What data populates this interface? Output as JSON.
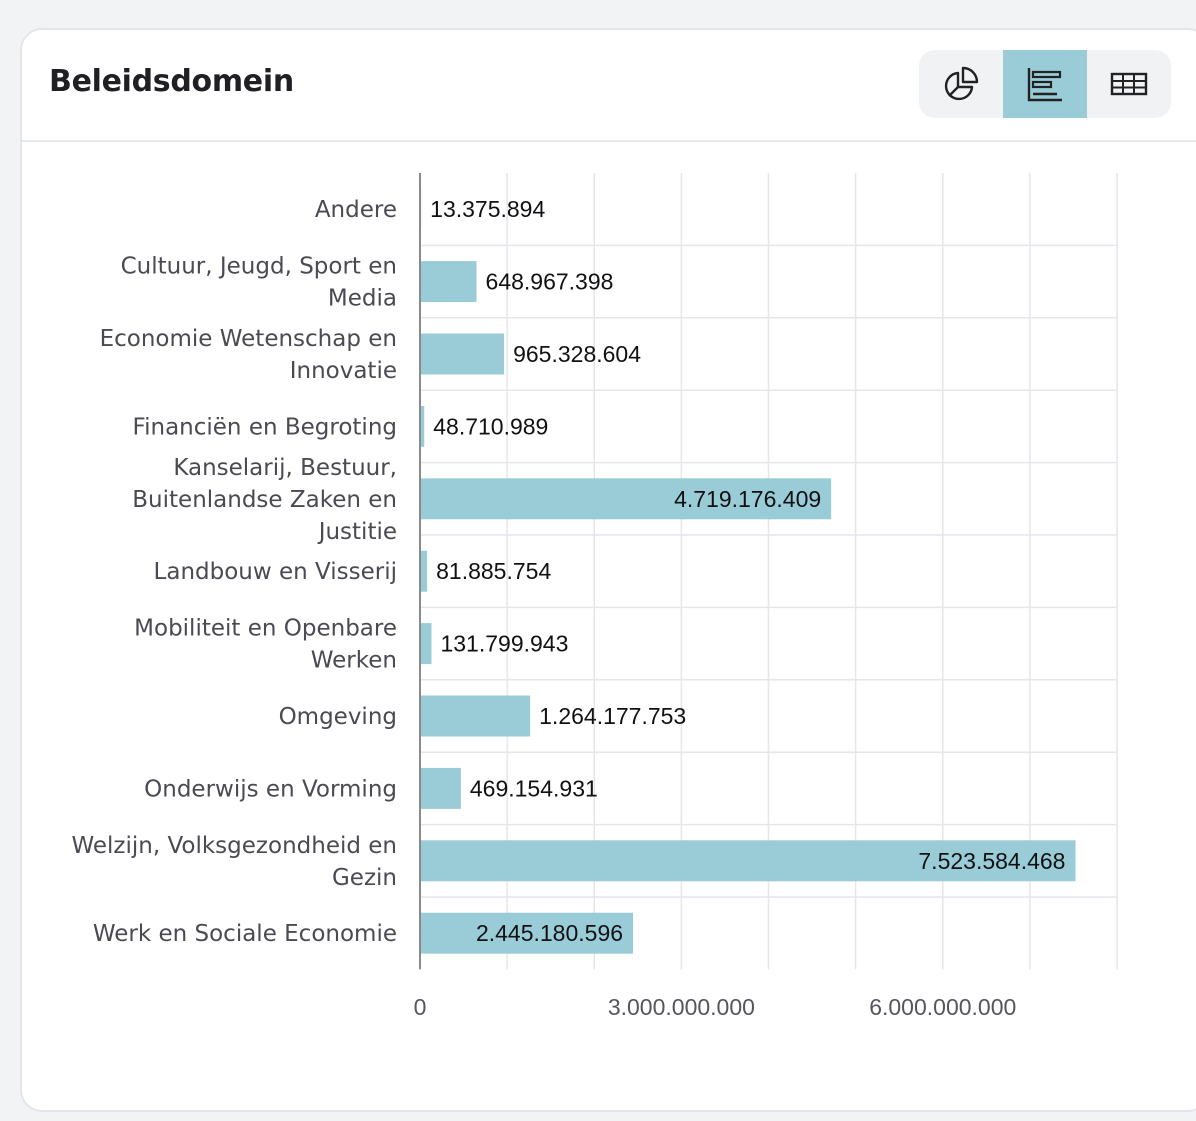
{
  "header": {
    "title": "Beleidsdomein",
    "view_switcher": [
      {
        "icon": "pie-chart-icon",
        "active": false
      },
      {
        "icon": "bar-chart-icon",
        "active": true
      },
      {
        "icon": "table-icon",
        "active": false
      }
    ]
  },
  "colors": {
    "bar": "#99ccd7",
    "active_button": "#99ccd7",
    "grid": "#e4e6ea",
    "axis": "#8a8a8a"
  },
  "chart_data": {
    "type": "bar",
    "orientation": "horizontal",
    "title": "Beleidsdomein",
    "categories": [
      "Andere",
      "Cultuur, Jeugd, Sport en Media",
      "Economie Wetenschap en Innovatie",
      "Financiën en Begroting",
      "Kanselarij, Bestuur, Buitenlandse Zaken en Justitie",
      "Landbouw en Visserij",
      "Mobiliteit en Openbare Werken",
      "Omgeving",
      "Onderwijs en Vorming",
      "Welzijn, Volksgezondheid en Gezin",
      "Werk en Sociale Economie"
    ],
    "category_lines": [
      [
        "Andere"
      ],
      [
        "Cultuur, Jeugd, Sport en",
        "Media"
      ],
      [
        "Economie Wetenschap en",
        "Innovatie"
      ],
      [
        "Financiën en Begroting"
      ],
      [
        "Kanselarij, Bestuur,",
        "Buitenlandse Zaken en",
        "Justitie"
      ],
      [
        "Landbouw en Visserij"
      ],
      [
        "Mobiliteit en Openbare",
        "Werken"
      ],
      [
        "Omgeving"
      ],
      [
        "Onderwijs en Vorming"
      ],
      [
        "Welzijn, Volksgezondheid en",
        "Gezin"
      ],
      [
        "Werk en Sociale Economie"
      ]
    ],
    "values": [
      13375894,
      648967398,
      965328604,
      48710989,
      4719176409,
      81885754,
      131799943,
      1264177753,
      469154931,
      7523584468,
      2445180596
    ],
    "value_labels": [
      "13.375.894",
      "648.967.398",
      "965.328.604",
      "48.710.989",
      "4.719.176.409",
      "81.885.754",
      "131.799.943",
      "1.264.177.753",
      "469.154.931",
      "7.523.584.468",
      "2.445.180.596"
    ],
    "xlim": [
      0,
      8000000000
    ],
    "grid_step": 1000000000,
    "ticks": [
      {
        "value": 0,
        "label": "0"
      },
      {
        "value": 3000000000,
        "label": "3.000.000.000"
      },
      {
        "value": 6000000000,
        "label": "6.000.000.000"
      }
    ],
    "grid": true,
    "legend": "none",
    "xlabel": "",
    "ylabel": ""
  }
}
